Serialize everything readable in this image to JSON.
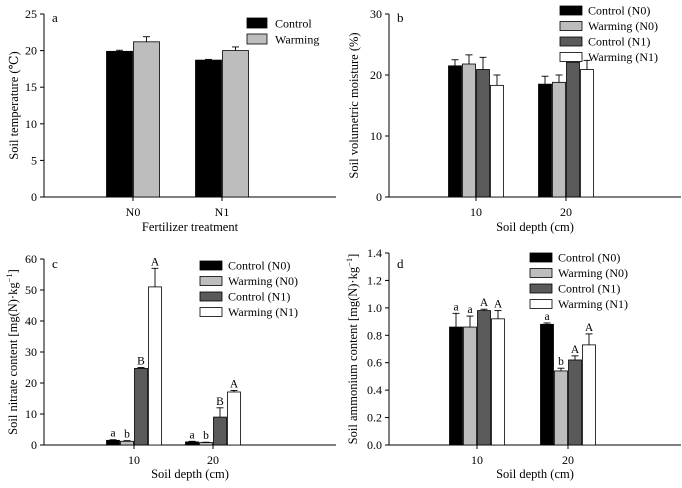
{
  "chart_data": [
    {
      "panel_label": "a",
      "type": "bar",
      "categories": [
        "N0",
        "N1"
      ],
      "xlabel": "Fertilizer treatment",
      "ylabel": "Soil temperature (℃)",
      "ylim": [
        0,
        25
      ],
      "yticks": [
        0,
        5,
        10,
        15,
        20,
        25
      ],
      "legend_position": "top-right",
      "series": [
        {
          "name": "Control",
          "color": "#000000",
          "values": [
            19.9,
            18.7
          ],
          "errors": [
            0.15,
            0.1
          ]
        },
        {
          "name": "Warming",
          "color": "#bdbdbd",
          "values": [
            21.2,
            20.0
          ],
          "errors": [
            0.7,
            0.5
          ]
        }
      ]
    },
    {
      "panel_label": "b",
      "type": "bar",
      "categories": [
        "10",
        "20"
      ],
      "xlabel": "Soil depth (cm)",
      "ylabel": "Soil volumetric moisture (%)",
      "ylim": [
        0,
        30
      ],
      "yticks": [
        0,
        10,
        20,
        30
      ],
      "legend_position": "top-right",
      "series": [
        {
          "name": "Control (N0)",
          "color": "#000000",
          "values": [
            21.5,
            18.5
          ],
          "errors": [
            1.0,
            1.3
          ]
        },
        {
          "name": "Warming (N0)",
          "color": "#bdbdbd",
          "values": [
            21.8,
            18.8
          ],
          "errors": [
            1.5,
            1.2
          ]
        },
        {
          "name": "Control (N1)",
          "color": "#5a5a5a",
          "values": [
            20.9,
            22.1
          ],
          "errors": [
            2.0,
            1.3
          ]
        },
        {
          "name": "Warming (N1)",
          "color": "#ffffff",
          "values": [
            18.3,
            20.9
          ],
          "errors": [
            1.7,
            1.5
          ]
        }
      ]
    },
    {
      "panel_label": "c",
      "type": "bar",
      "categories": [
        "10",
        "20"
      ],
      "xlabel": "Soil depth (cm)",
      "ylabel": "Soil nitrate content [mg(N)·kg⁻¹]",
      "ylim": [
        0,
        60
      ],
      "yticks": [
        0,
        10,
        20,
        30,
        40,
        50,
        60
      ],
      "legend_position": "top-right",
      "series": [
        {
          "name": "Control (N0)",
          "color": "#000000",
          "values": [
            1.5,
            1.0
          ],
          "errors": [
            0.2,
            0.2
          ],
          "sig": [
            "a",
            "a"
          ]
        },
        {
          "name": "Warming (N0)",
          "color": "#bdbdbd",
          "values": [
            1.2,
            0.8
          ],
          "errors": [
            0.2,
            0.1
          ],
          "sig": [
            "b",
            "b"
          ]
        },
        {
          "name": "Control (N1)",
          "color": "#5a5a5a",
          "values": [
            24.7,
            9.0
          ],
          "errors": [
            0.3,
            3.0
          ],
          "sig": [
            "B",
            "B"
          ]
        },
        {
          "name": "Warming (N1)",
          "color": "#ffffff",
          "values": [
            51.0,
            17.1
          ],
          "errors": [
            6.0,
            0.5
          ],
          "sig": [
            "A",
            "A"
          ]
        }
      ]
    },
    {
      "panel_label": "d",
      "type": "bar",
      "categories": [
        "10",
        "20"
      ],
      "xlabel": "Soil depth (cm)",
      "ylabel": "Soil ammonium content [mg(N)·kg⁻¹]",
      "ylim": [
        0,
        1.4
      ],
      "yticks": [
        0,
        0.2,
        0.4,
        0.6,
        0.8,
        1.0,
        1.2,
        1.4
      ],
      "legend_position": "top-right",
      "series": [
        {
          "name": "Control (N0)",
          "color": "#000000",
          "values": [
            0.86,
            0.88
          ],
          "errors": [
            0.1,
            0.01
          ],
          "sig": [
            "a",
            "a"
          ]
        },
        {
          "name": "Warming (N0)",
          "color": "#bdbdbd",
          "values": [
            0.86,
            0.54
          ],
          "errors": [
            0.08,
            0.02
          ],
          "sig": [
            "a",
            "b"
          ]
        },
        {
          "name": "Control (N1)",
          "color": "#5a5a5a",
          "values": [
            0.98,
            0.62
          ],
          "errors": [
            0.01,
            0.03
          ],
          "sig": [
            "A",
            "A"
          ]
        },
        {
          "name": "Warming (N1)",
          "color": "#ffffff",
          "values": [
            0.92,
            0.73
          ],
          "errors": [
            0.06,
            0.08
          ],
          "sig": [
            "A",
            "A"
          ]
        }
      ]
    }
  ]
}
